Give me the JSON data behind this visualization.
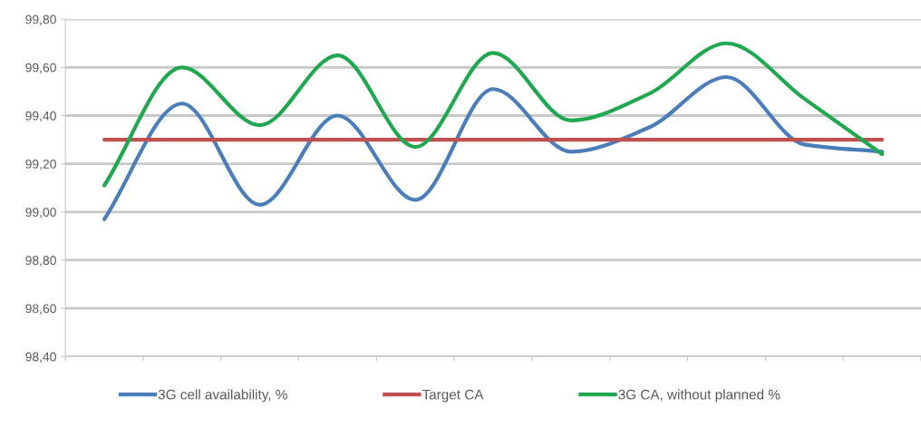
{
  "chart_data": {
    "type": "line",
    "categories": [
      null,
      null,
      null,
      null,
      null,
      null,
      null,
      null,
      null,
      null,
      null
    ],
    "series": [
      {
        "name": "3G cell availability, %",
        "color": "#4a7ebb",
        "values": [
          98.97,
          99.45,
          99.03,
          99.4,
          99.05,
          99.51,
          99.25,
          99.35,
          99.56,
          99.28,
          99.25
        ]
      },
      {
        "name": "Target CA",
        "color": "#c0504d",
        "values": [
          99.3,
          99.3,
          99.3,
          99.3,
          99.3,
          99.3,
          99.3,
          99.3,
          99.3,
          99.3,
          99.3
        ]
      },
      {
        "name": "3G CA, without planned %",
        "color": "#1fa84f",
        "values": [
          99.11,
          99.6,
          99.36,
          99.65,
          99.27,
          99.66,
          99.38,
          99.49,
          99.7,
          99.47,
          99.24
        ]
      }
    ],
    "ylim": [
      98.4,
      99.8
    ],
    "yticks": [
      {
        "value": 98.4,
        "label": "98,40"
      },
      {
        "value": 98.6,
        "label": "98,60"
      },
      {
        "value": 98.8,
        "label": "98,80"
      },
      {
        "value": 99.0,
        "label": "99,00"
      },
      {
        "value": 99.2,
        "label": "99,20"
      },
      {
        "value": 99.4,
        "label": "99,40"
      },
      {
        "value": 99.6,
        "label": "99,60"
      },
      {
        "value": 99.8,
        "label": "99,80"
      }
    ],
    "grid": "y",
    "legend": "bottom",
    "marker": "none",
    "line_style": "solid"
  }
}
